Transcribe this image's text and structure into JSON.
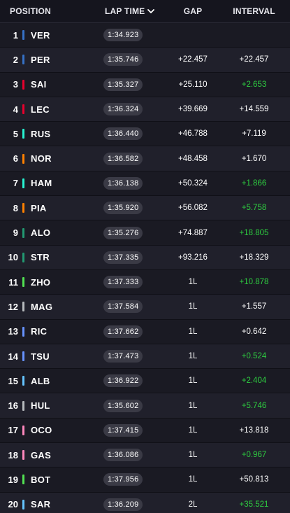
{
  "header": {
    "position": "POSITION",
    "lap_time": "LAP TIME",
    "gap": "GAP",
    "interval": "INTERVAL"
  },
  "colors": {
    "interval_gain": "#2ecc40",
    "interval_normal": "#ffffff"
  },
  "rows": [
    {
      "pos": "1",
      "driver": "VER",
      "team_color": "#3671c6",
      "lap": "1:34.923",
      "gap": "",
      "interval": "",
      "interval_color": "#ffffff"
    },
    {
      "pos": "2",
      "driver": "PER",
      "team_color": "#3671c6",
      "lap": "1:35.746",
      "gap": "+22.457",
      "interval": "+22.457",
      "interval_color": "#ffffff"
    },
    {
      "pos": "3",
      "driver": "SAI",
      "team_color": "#e8002d",
      "lap": "1:35.327",
      "gap": "+25.110",
      "interval": "+2.653",
      "interval_color": "#2ecc40"
    },
    {
      "pos": "4",
      "driver": "LEC",
      "team_color": "#e8002d",
      "lap": "1:36.324",
      "gap": "+39.669",
      "interval": "+14.559",
      "interval_color": "#ffffff"
    },
    {
      "pos": "5",
      "driver": "RUS",
      "team_color": "#27f4d2",
      "lap": "1:36.440",
      "gap": "+46.788",
      "interval": "+7.119",
      "interval_color": "#ffffff"
    },
    {
      "pos": "6",
      "driver": "NOR",
      "team_color": "#ff8000",
      "lap": "1:36.582",
      "gap": "+48.458",
      "interval": "+1.670",
      "interval_color": "#ffffff"
    },
    {
      "pos": "7",
      "driver": "HAM",
      "team_color": "#27f4d2",
      "lap": "1:36.138",
      "gap": "+50.324",
      "interval": "+1.866",
      "interval_color": "#2ecc40"
    },
    {
      "pos": "8",
      "driver": "PIA",
      "team_color": "#ff8000",
      "lap": "1:35.920",
      "gap": "+56.082",
      "interval": "+5.758",
      "interval_color": "#2ecc40"
    },
    {
      "pos": "9",
      "driver": "ALO",
      "team_color": "#229971",
      "lap": "1:35.276",
      "gap": "+74.887",
      "interval": "+18.805",
      "interval_color": "#2ecc40"
    },
    {
      "pos": "10",
      "driver": "STR",
      "team_color": "#229971",
      "lap": "1:37.335",
      "gap": "+93.216",
      "interval": "+18.329",
      "interval_color": "#ffffff"
    },
    {
      "pos": "11",
      "driver": "ZHO",
      "team_color": "#52e252",
      "lap": "1:37.333",
      "gap": "1L",
      "interval": "+10.878",
      "interval_color": "#2ecc40"
    },
    {
      "pos": "12",
      "driver": "MAG",
      "team_color": "#b6babd",
      "lap": "1:37.584",
      "gap": "1L",
      "interval": "+1.557",
      "interval_color": "#ffffff"
    },
    {
      "pos": "13",
      "driver": "RIC",
      "team_color": "#6692ff",
      "lap": "1:37.662",
      "gap": "1L",
      "interval": "+0.642",
      "interval_color": "#ffffff"
    },
    {
      "pos": "14",
      "driver": "TSU",
      "team_color": "#6692ff",
      "lap": "1:37.473",
      "gap": "1L",
      "interval": "+0.524",
      "interval_color": "#2ecc40"
    },
    {
      "pos": "15",
      "driver": "ALB",
      "team_color": "#64c4ff",
      "lap": "1:36.922",
      "gap": "1L",
      "interval": "+2.404",
      "interval_color": "#2ecc40"
    },
    {
      "pos": "16",
      "driver": "HUL",
      "team_color": "#b6babd",
      "lap": "1:35.602",
      "gap": "1L",
      "interval": "+5.746",
      "interval_color": "#2ecc40"
    },
    {
      "pos": "17",
      "driver": "OCO",
      "team_color": "#ff87bc",
      "lap": "1:37.415",
      "gap": "1L",
      "interval": "+13.818",
      "interval_color": "#ffffff"
    },
    {
      "pos": "18",
      "driver": "GAS",
      "team_color": "#ff87bc",
      "lap": "1:36.086",
      "gap": "1L",
      "interval": "+0.967",
      "interval_color": "#2ecc40"
    },
    {
      "pos": "19",
      "driver": "BOT",
      "team_color": "#52e252",
      "lap": "1:37.956",
      "gap": "1L",
      "interval": "+50.813",
      "interval_color": "#ffffff"
    },
    {
      "pos": "20",
      "driver": "SAR",
      "team_color": "#64c4ff",
      "lap": "1:36.209",
      "gap": "2L",
      "interval": "+35.521",
      "interval_color": "#2ecc40"
    }
  ]
}
